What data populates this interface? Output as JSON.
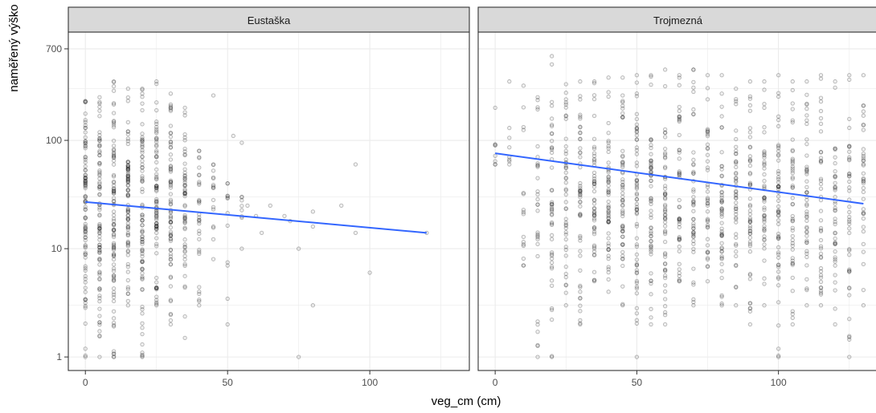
{
  "chart_data": {
    "type": "scatter",
    "title": "",
    "xlabel": "veg_cm (cm)",
    "ylabel": "naměřený výško",
    "yscale": "log10",
    "ylim": [
      0.75,
      1000
    ],
    "yticks": [
      1,
      10,
      100,
      700
    ],
    "ytick_labels": [
      "1",
      "10",
      "100",
      "700"
    ],
    "grid": true,
    "colors": {
      "points": "#000000",
      "trend": "#3366ff",
      "strip_bg": "#d9d9d9",
      "grid": "#ebebeb"
    },
    "panels": [
      {
        "name": "Eustaška",
        "xlim": [
          -6,
          135
        ],
        "xticks": [
          0,
          50,
          100
        ],
        "xtick_labels": [
          "0",
          "50",
          "100"
        ],
        "trend": {
          "x": [
            0,
            120
          ],
          "y": [
            27,
            14
          ]
        },
        "columns": [
          {
            "x": 0,
            "min": 1,
            "max": 230,
            "n": 90
          },
          {
            "x": 5,
            "min": 1,
            "max": 250,
            "n": 85
          },
          {
            "x": 10,
            "min": 1,
            "max": 350,
            "n": 90
          },
          {
            "x": 15,
            "min": 3,
            "max": 300,
            "n": 80
          },
          {
            "x": 20,
            "min": 1,
            "max": 300,
            "n": 80
          },
          {
            "x": 25,
            "min": 3,
            "max": 350,
            "n": 80
          },
          {
            "x": 30,
            "min": 2,
            "max": 270,
            "n": 70
          },
          {
            "x": 35,
            "min": 1.5,
            "max": 200,
            "n": 55
          },
          {
            "x": 40,
            "min": 3,
            "max": 80,
            "n": 30
          },
          {
            "x": 45,
            "min": 8,
            "max": 60,
            "n": 14
          },
          {
            "x": 50,
            "min": 2,
            "max": 40,
            "n": 10
          },
          {
            "x": 55,
            "min": 10,
            "max": 30,
            "n": 6
          }
        ],
        "points": [
          {
            "x": 45,
            "y": 260
          },
          {
            "x": 52,
            "y": 110
          },
          {
            "x": 55,
            "y": 95
          },
          {
            "x": 57,
            "y": 25
          },
          {
            "x": 60,
            "y": 20
          },
          {
            "x": 62,
            "y": 14
          },
          {
            "x": 65,
            "y": 25
          },
          {
            "x": 70,
            "y": 20
          },
          {
            "x": 72,
            "y": 18
          },
          {
            "x": 75,
            "y": 10
          },
          {
            "x": 75,
            "y": 1
          },
          {
            "x": 80,
            "y": 22
          },
          {
            "x": 80,
            "y": 16
          },
          {
            "x": 80,
            "y": 3
          },
          {
            "x": 90,
            "y": 25
          },
          {
            "x": 95,
            "y": 60
          },
          {
            "x": 95,
            "y": 14
          },
          {
            "x": 100,
            "y": 6
          },
          {
            "x": 120,
            "y": 14
          }
        ]
      },
      {
        "name": "Trojmezná",
        "xlim": [
          -6,
          135
        ],
        "xticks": [
          0,
          50,
          100
        ],
        "xtick_labels": [
          "0",
          "50",
          "100"
        ],
        "trend": {
          "x": [
            0,
            130
          ],
          "y": [
            76,
            26
          ]
        },
        "columns": [
          {
            "x": 0,
            "min": 60,
            "max": 200,
            "n": 6
          },
          {
            "x": 5,
            "min": 60,
            "max": 350,
            "n": 6
          },
          {
            "x": 10,
            "min": 7,
            "max": 320,
            "n": 14
          },
          {
            "x": 15,
            "min": 1,
            "max": 250,
            "n": 28
          },
          {
            "x": 20,
            "min": 1,
            "max": 600,
            "n": 45
          },
          {
            "x": 25,
            "min": 3,
            "max": 330,
            "n": 45
          },
          {
            "x": 30,
            "min": 2,
            "max": 350,
            "n": 50
          },
          {
            "x": 35,
            "min": 5,
            "max": 350,
            "n": 50
          },
          {
            "x": 40,
            "min": 4,
            "max": 380,
            "n": 55
          },
          {
            "x": 45,
            "min": 3,
            "max": 380,
            "n": 55
          },
          {
            "x": 50,
            "min": 1,
            "max": 400,
            "n": 60
          },
          {
            "x": 55,
            "min": 2,
            "max": 400,
            "n": 55
          },
          {
            "x": 60,
            "min": 2,
            "max": 450,
            "n": 55
          },
          {
            "x": 65,
            "min": 5,
            "max": 400,
            "n": 45
          },
          {
            "x": 70,
            "min": 3,
            "max": 450,
            "n": 45
          },
          {
            "x": 75,
            "min": 5,
            "max": 400,
            "n": 40
          },
          {
            "x": 80,
            "min": 3,
            "max": 400,
            "n": 50
          },
          {
            "x": 85,
            "min": 3,
            "max": 300,
            "n": 45
          },
          {
            "x": 90,
            "min": 2,
            "max": 350,
            "n": 50
          },
          {
            "x": 95,
            "min": 3,
            "max": 350,
            "n": 45
          },
          {
            "x": 100,
            "min": 1,
            "max": 400,
            "n": 55
          },
          {
            "x": 105,
            "min": 2,
            "max": 350,
            "n": 45
          },
          {
            "x": 110,
            "min": 3,
            "max": 350,
            "n": 45
          },
          {
            "x": 115,
            "min": 3,
            "max": 400,
            "n": 40
          },
          {
            "x": 120,
            "min": 2,
            "max": 350,
            "n": 40
          },
          {
            "x": 125,
            "min": 1,
            "max": 400,
            "n": 40
          },
          {
            "x": 130,
            "min": 3,
            "max": 400,
            "n": 35
          }
        ],
        "points": []
      }
    ]
  }
}
